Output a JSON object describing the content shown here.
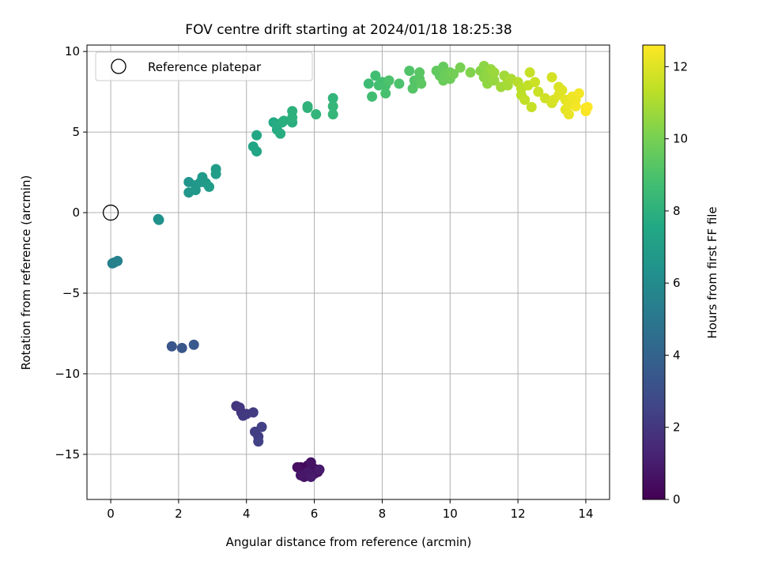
{
  "chart_data": {
    "type": "scatter",
    "title": "FOV centre drift starting at 2024/01/18 18:25:38",
    "xlabel": "Angular distance from reference (arcmin)",
    "ylabel": "Rotation from reference (arcmin)",
    "xlim": [
      -0.7,
      14.7
    ],
    "ylim": [
      -17.8,
      10.4
    ],
    "xticks": [
      0,
      2,
      4,
      6,
      8,
      10,
      12,
      14
    ],
    "yticks": [
      -15,
      -10,
      -5,
      0,
      5,
      10
    ],
    "grid": true,
    "legend": {
      "placement": "upper-left",
      "entries": [
        "Reference platepar"
      ]
    },
    "reference_point": {
      "x": 0,
      "y": 0
    },
    "colorbar": {
      "label": "Hours from first FF file",
      "range": [
        0,
        12.6
      ],
      "ticks": [
        0,
        2,
        4,
        6,
        8,
        10,
        12
      ],
      "colormap": "viridis"
    },
    "points": [
      [
        5.6,
        -15.8,
        0.2
      ],
      [
        5.7,
        -16.2,
        0.3
      ],
      [
        5.8,
        -15.7,
        0.3
      ],
      [
        5.9,
        -16.3,
        0.4
      ],
      [
        6.0,
        -15.9,
        0.4
      ],
      [
        5.5,
        -15.8,
        0.5
      ],
      [
        6.1,
        -16.1,
        0.5
      ],
      [
        5.7,
        -16.4,
        0.6
      ],
      [
        5.9,
        -15.5,
        0.6
      ],
      [
        6.0,
        -16.2,
        0.7
      ],
      [
        6.1,
        -16.0,
        0.7
      ],
      [
        5.8,
        -16.1,
        0.8
      ],
      [
        5.6,
        -16.3,
        0.8
      ],
      [
        5.9,
        -16.4,
        0.9
      ],
      [
        6.15,
        -15.95,
        0.9
      ],
      [
        3.7,
        -12.0,
        1.9
      ],
      [
        3.85,
        -12.4,
        2.0
      ],
      [
        3.8,
        -12.1,
        2.0
      ],
      [
        3.9,
        -12.6,
        2.1
      ],
      [
        4.0,
        -12.5,
        2.1
      ],
      [
        4.2,
        -12.4,
        2.2
      ],
      [
        4.25,
        -13.6,
        2.3
      ],
      [
        4.35,
        -13.9,
        2.3
      ],
      [
        4.45,
        -13.3,
        2.4
      ],
      [
        4.35,
        -14.2,
        2.4
      ],
      [
        1.8,
        -8.3,
        3.3
      ],
      [
        2.1,
        -8.4,
        3.4
      ],
      [
        2.45,
        -8.2,
        3.5
      ],
      [
        0.05,
        -3.15,
        5.4
      ],
      [
        0.1,
        -3.1,
        5.5
      ],
      [
        0.2,
        -3.0,
        5.5
      ],
      [
        1.4,
        -0.4,
        6.3
      ],
      [
        1.42,
        -0.45,
        6.3
      ],
      [
        2.3,
        1.9,
        6.5
      ],
      [
        2.3,
        1.25,
        6.6
      ],
      [
        2.5,
        1.7,
        6.6
      ],
      [
        2.5,
        1.4,
        6.7
      ],
      [
        2.65,
        1.9,
        6.7
      ],
      [
        2.7,
        2.2,
        6.8
      ],
      [
        2.8,
        1.85,
        6.8
      ],
      [
        2.9,
        1.6,
        6.9
      ],
      [
        3.1,
        2.7,
        6.9
      ],
      [
        3.1,
        2.4,
        7.0
      ],
      [
        4.2,
        4.1,
        7.4
      ],
      [
        4.3,
        3.8,
        7.4
      ],
      [
        4.3,
        4.8,
        7.5
      ],
      [
        4.8,
        5.6,
        7.6
      ],
      [
        4.9,
        5.15,
        7.7
      ],
      [
        4.9,
        5.4,
        7.7
      ],
      [
        5.0,
        4.9,
        7.8
      ],
      [
        5.05,
        5.6,
        7.8
      ],
      [
        5.1,
        5.7,
        7.9
      ],
      [
        5.35,
        5.6,
        7.9
      ],
      [
        5.35,
        6.3,
        8.0
      ],
      [
        5.35,
        5.9,
        8.0
      ],
      [
        5.8,
        6.5,
        8.1
      ],
      [
        5.8,
        6.6,
        8.1
      ],
      [
        6.05,
        6.1,
        8.2
      ],
      [
        6.55,
        7.1,
        8.2
      ],
      [
        6.55,
        6.6,
        8.3
      ],
      [
        6.55,
        6.1,
        8.3
      ],
      [
        7.6,
        8.0,
        8.6
      ],
      [
        7.7,
        7.2,
        8.7
      ],
      [
        7.8,
        8.5,
        8.7
      ],
      [
        7.9,
        7.9,
        8.8
      ],
      [
        8.0,
        8.1,
        8.8
      ],
      [
        8.1,
        7.4,
        8.9
      ],
      [
        8.1,
        7.9,
        8.9
      ],
      [
        8.2,
        8.2,
        9.0
      ],
      [
        8.5,
        8.0,
        9.0
      ],
      [
        8.8,
        8.8,
        9.1
      ],
      [
        8.9,
        7.7,
        9.2
      ],
      [
        8.95,
        8.2,
        9.2
      ],
      [
        9.1,
        8.7,
        9.3
      ],
      [
        9.1,
        8.3,
        9.3
      ],
      [
        9.15,
        8.0,
        9.4
      ],
      [
        9.6,
        8.8,
        9.5
      ],
      [
        9.7,
        8.5,
        9.5
      ],
      [
        9.8,
        8.9,
        9.6
      ],
      [
        9.8,
        9.05,
        9.6
      ],
      [
        9.8,
        8.2,
        9.7
      ],
      [
        9.85,
        8.6,
        9.7
      ],
      [
        10.0,
        8.7,
        9.8
      ],
      [
        10.0,
        8.3,
        9.8
      ],
      [
        10.1,
        8.6,
        9.9
      ],
      [
        10.3,
        9.0,
        10.0
      ],
      [
        10.6,
        8.7,
        10.2
      ],
      [
        10.9,
        8.8,
        10.3
      ],
      [
        11.0,
        9.1,
        10.4
      ],
      [
        11.0,
        8.4,
        10.4
      ],
      [
        11.1,
        8.6,
        10.5
      ],
      [
        11.1,
        8.0,
        10.5
      ],
      [
        11.2,
        8.9,
        10.6
      ],
      [
        11.3,
        8.2,
        10.6
      ],
      [
        11.3,
        8.7,
        10.7
      ],
      [
        11.5,
        7.8,
        10.8
      ],
      [
        11.6,
        8.5,
        10.8
      ],
      [
        11.7,
        8.1,
        10.9
      ],
      [
        11.7,
        7.9,
        10.9
      ],
      [
        11.8,
        8.3,
        11.0
      ],
      [
        12.0,
        8.1,
        11.2
      ],
      [
        12.1,
        7.3,
        11.3
      ],
      [
        12.1,
        7.7,
        11.3
      ],
      [
        12.2,
        7.0,
        11.4
      ],
      [
        12.3,
        7.9,
        11.4
      ],
      [
        12.35,
        8.7,
        11.5
      ],
      [
        12.4,
        6.55,
        11.5
      ],
      [
        12.5,
        8.1,
        11.6
      ],
      [
        12.6,
        7.5,
        11.6
      ],
      [
        12.8,
        7.1,
        11.7
      ],
      [
        13.0,
        8.4,
        11.8
      ],
      [
        13.0,
        6.8,
        11.8
      ],
      [
        13.05,
        7.0,
        11.9
      ],
      [
        13.2,
        7.8,
        11.9
      ],
      [
        13.2,
        7.3,
        12.0
      ],
      [
        13.3,
        7.6,
        12.0
      ],
      [
        13.4,
        6.4,
        12.1
      ],
      [
        13.4,
        7.0,
        12.1
      ],
      [
        13.5,
        6.7,
        12.2
      ],
      [
        13.5,
        6.1,
        12.2
      ],
      [
        13.6,
        7.2,
        12.3
      ],
      [
        13.7,
        7.0,
        12.3
      ],
      [
        13.7,
        6.6,
        12.4
      ],
      [
        13.8,
        7.4,
        12.4
      ],
      [
        14.0,
        6.5,
        12.5
      ],
      [
        14.0,
        6.3,
        12.5
      ],
      [
        14.05,
        6.55,
        12.6
      ]
    ]
  }
}
